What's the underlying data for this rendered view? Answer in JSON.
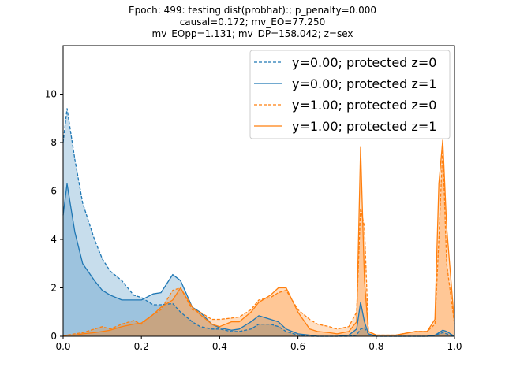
{
  "chart_data": {
    "type": "area",
    "title": [
      "Epoch: 499: testing dist(probhat):; p_penalty=0.000",
      "causal=0.172; mv_EO=77.250",
      "mv_EOpp=1.131; mv_DP=158.042; z=sex"
    ],
    "xlabel": "",
    "ylabel": "",
    "xlim": [
      0,
      1
    ],
    "ylim": [
      0,
      12
    ],
    "xticks": [
      "0.0",
      "0.2",
      "0.4",
      "0.6",
      "0.8",
      "1.0"
    ],
    "xtick_values": [
      0,
      0.2,
      0.4,
      0.6,
      0.8,
      1.0
    ],
    "yticks": [
      "0",
      "2",
      "4",
      "6",
      "8",
      "10"
    ],
    "ytick_values": [
      0,
      2,
      4,
      6,
      8,
      10
    ],
    "grid": false,
    "legend_position": "top-right",
    "colors": {
      "blue": "#1f77b4",
      "orange": "#ff7f0e"
    },
    "x": [
      0,
      0.01,
      0.03,
      0.05,
      0.08,
      0.1,
      0.12,
      0.15,
      0.18,
      0.2,
      0.23,
      0.25,
      0.28,
      0.3,
      0.33,
      0.35,
      0.38,
      0.4,
      0.43,
      0.45,
      0.48,
      0.5,
      0.53,
      0.55,
      0.57,
      0.6,
      0.63,
      0.65,
      0.68,
      0.7,
      0.73,
      0.75,
      0.76,
      0.77,
      0.78,
      0.8,
      0.85,
      0.9,
      0.93,
      0.95,
      0.96,
      0.97,
      0.98,
      1.0
    ],
    "series": [
      {
        "name": "y=0.00; protected z=0",
        "color": "#1f77b4",
        "dashed": true,
        "values": [
          8.0,
          9.4,
          7.3,
          5.5,
          4.0,
          3.2,
          2.7,
          2.3,
          1.7,
          1.6,
          1.3,
          1.3,
          1.35,
          1.0,
          0.6,
          0.4,
          0.3,
          0.3,
          0.2,
          0.2,
          0.3,
          0.5,
          0.5,
          0.4,
          0.2,
          0.05,
          0.0,
          0.0,
          0.0,
          0.0,
          0.0,
          0.05,
          0.3,
          0.35,
          0.1,
          0.0,
          0.0,
          0.0,
          0.0,
          0.05,
          0.1,
          0.15,
          0.1,
          0.0
        ]
      },
      {
        "name": "y=0.00; protected z=1",
        "color": "#1f77b4",
        "dashed": false,
        "values": [
          5.0,
          6.3,
          4.3,
          3.0,
          2.3,
          1.9,
          1.7,
          1.5,
          1.5,
          1.5,
          1.75,
          1.8,
          2.55,
          2.3,
          1.2,
          1.0,
          0.5,
          0.35,
          0.25,
          0.3,
          0.6,
          0.85,
          0.7,
          0.6,
          0.3,
          0.1,
          0.05,
          0.0,
          0.0,
          0.0,
          0.05,
          0.3,
          1.4,
          0.6,
          0.1,
          0.0,
          0.0,
          0.0,
          0.0,
          0.05,
          0.15,
          0.25,
          0.2,
          0.0
        ]
      },
      {
        "name": "y=1.00; protected z=0",
        "color": "#ff7f0e",
        "dashed": true,
        "values": [
          0.0,
          0.05,
          0.1,
          0.15,
          0.3,
          0.4,
          0.3,
          0.5,
          0.65,
          0.5,
          0.9,
          1.1,
          1.9,
          2.0,
          1.1,
          1.0,
          0.7,
          0.7,
          0.75,
          0.8,
          1.1,
          1.5,
          1.6,
          1.8,
          1.9,
          1.1,
          0.7,
          0.5,
          0.4,
          0.3,
          0.4,
          1.0,
          5.3,
          4.5,
          0.2,
          0.05,
          0.05,
          0.2,
          0.2,
          0.5,
          4.0,
          7.8,
          3.0,
          0.5
        ]
      },
      {
        "name": "y=1.00; protected z=1",
        "color": "#ff7f0e",
        "dashed": false,
        "values": [
          0.0,
          0.05,
          0.05,
          0.1,
          0.15,
          0.2,
          0.25,
          0.4,
          0.5,
          0.55,
          0.9,
          1.2,
          1.5,
          2.0,
          1.2,
          0.9,
          0.5,
          0.4,
          0.6,
          0.6,
          1.0,
          1.4,
          1.7,
          2.0,
          2.0,
          1.0,
          0.3,
          0.2,
          0.15,
          0.1,
          0.2,
          0.6,
          7.8,
          2.3,
          0.2,
          0.05,
          0.05,
          0.2,
          0.2,
          0.7,
          6.3,
          8.1,
          4.5,
          0.5
        ]
      }
    ]
  }
}
